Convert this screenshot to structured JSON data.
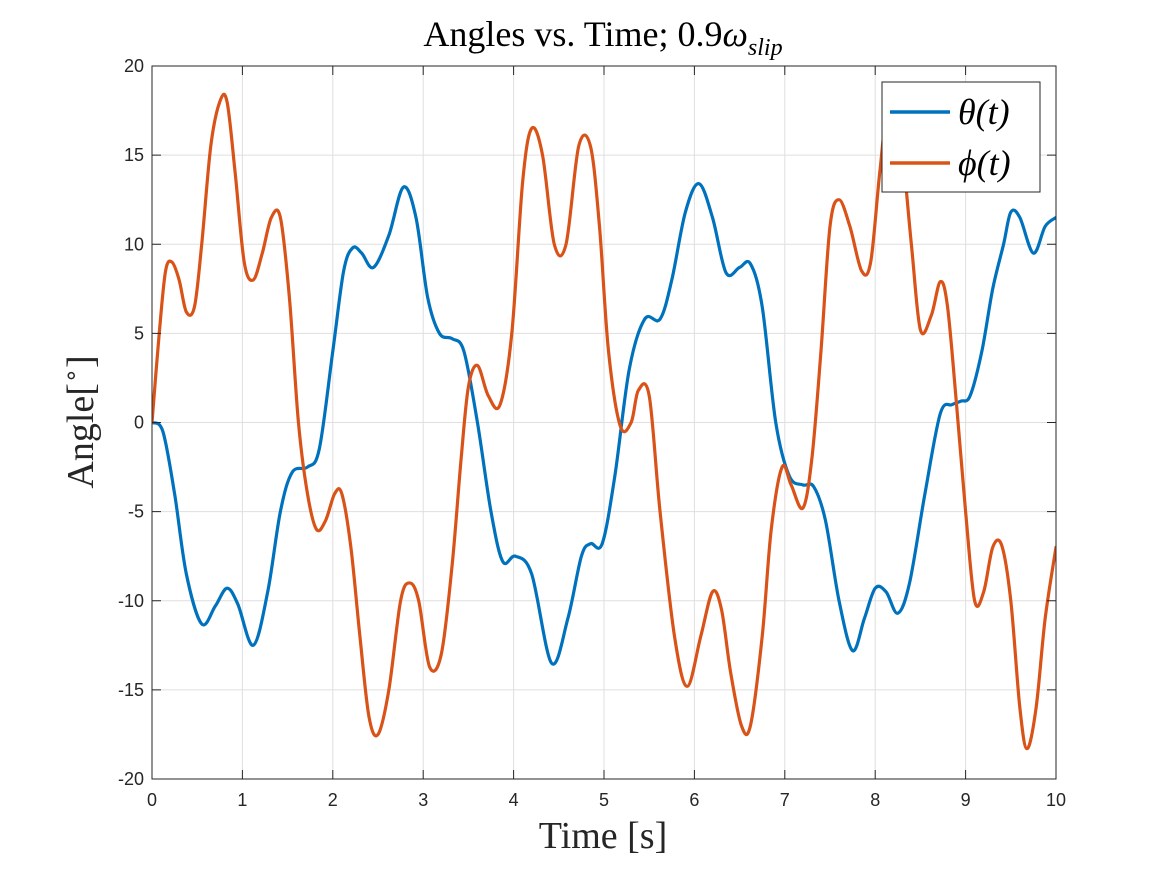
{
  "chart_data": {
    "type": "line",
    "title_main": "Angles vs. Time; 0.9",
    "title_omega": "ω",
    "title_sub": "slip",
    "xlabel": "Time [s]",
    "ylabel_main": "Angle[",
    "ylabel_deg": "∘",
    "ylabel_close": "]",
    "xlim": [
      0,
      10
    ],
    "ylim": [
      -20,
      20
    ],
    "xticks": [
      0,
      1,
      2,
      3,
      4,
      5,
      6,
      7,
      8,
      9,
      10
    ],
    "yticks": [
      -20,
      -15,
      -10,
      -5,
      0,
      5,
      10,
      15,
      20
    ],
    "xtick_labels": [
      "0",
      "1",
      "2",
      "3",
      "4",
      "5",
      "6",
      "7",
      "8",
      "9",
      "10"
    ],
    "ytick_labels": [
      "-20",
      "-15",
      "-10",
      "-5",
      "0",
      "5",
      "10",
      "15",
      "20"
    ],
    "grid": true,
    "legend_position": "top-right",
    "series": [
      {
        "name": "θ(t)",
        "color": "#0072bd",
        "x": [
          0,
          0.12,
          0.25,
          0.38,
          0.55,
          0.7,
          0.83,
          0.95,
          1.12,
          1.28,
          1.42,
          1.55,
          1.72,
          1.85,
          2.0,
          2.12,
          2.22,
          2.32,
          2.45,
          2.62,
          2.78,
          2.92,
          3.05,
          3.18,
          3.32,
          3.45,
          3.6,
          3.75,
          3.88,
          4.02,
          4.2,
          4.42,
          4.6,
          4.75,
          4.85,
          4.98,
          5.12,
          5.28,
          5.45,
          5.62,
          5.75,
          5.9,
          6.05,
          6.2,
          6.35,
          6.5,
          6.62,
          6.75,
          6.9,
          7.05,
          7.2,
          7.32,
          7.45,
          7.6,
          7.75,
          7.88,
          8.0,
          8.12,
          8.25,
          8.38,
          8.55,
          8.72,
          8.85,
          8.95,
          9.05,
          9.18,
          9.3,
          9.42,
          9.5,
          9.6,
          9.75,
          9.88,
          10.0
        ],
        "y": [
          0,
          -0.5,
          -4,
          -8.5,
          -11.3,
          -10.3,
          -9.3,
          -10.2,
          -12.5,
          -9.5,
          -5,
          -2.8,
          -2.5,
          -1.5,
          4,
          8.5,
          9.8,
          9.5,
          8.7,
          10.5,
          13.2,
          11.5,
          7,
          5,
          4.7,
          4,
          0,
          -5,
          -7.8,
          -7.5,
          -8.5,
          -13.5,
          -11,
          -7.5,
          -6.8,
          -6.8,
          -3,
          3,
          5.8,
          5.8,
          8,
          11.8,
          13.4,
          11.5,
          8.4,
          8.7,
          8.9,
          6.5,
          0,
          -3,
          -3.5,
          -3.6,
          -5.5,
          -10,
          -12.8,
          -11,
          -9.3,
          -9.5,
          -10.7,
          -9,
          -4,
          0.5,
          1,
          1.2,
          1.5,
          4,
          7.5,
          10,
          11.8,
          11.5,
          9.5,
          11,
          11.5
        ]
      },
      {
        "name": "ϕ(t)",
        "color": "#d95319",
        "x": [
          0,
          0.08,
          0.15,
          0.22,
          0.3,
          0.38,
          0.47,
          0.55,
          0.65,
          0.75,
          0.83,
          0.92,
          1.02,
          1.12,
          1.22,
          1.32,
          1.42,
          1.52,
          1.62,
          1.72,
          1.82,
          1.92,
          2.02,
          2.1,
          2.2,
          2.3,
          2.4,
          2.5,
          2.62,
          2.75,
          2.85,
          2.95,
          3.07,
          3.2,
          3.32,
          3.42,
          3.5,
          3.6,
          3.72,
          3.85,
          3.98,
          4.1,
          4.2,
          4.32,
          4.45,
          4.58,
          4.72,
          4.85,
          4.95,
          5.05,
          5.18,
          5.3,
          5.38,
          5.5,
          5.62,
          5.78,
          5.92,
          6.07,
          6.2,
          6.3,
          6.4,
          6.52,
          6.62,
          6.75,
          6.85,
          6.97,
          7.07,
          7.2,
          7.3,
          7.4,
          7.5,
          7.6,
          7.72,
          7.85,
          7.95,
          8.05,
          8.15,
          8.28,
          8.4,
          8.5,
          8.62,
          8.72,
          8.8,
          8.9,
          9.0,
          9.1,
          9.2,
          9.3,
          9.4,
          9.5,
          9.6,
          9.68,
          9.78,
          9.88,
          10.0
        ],
        "y": [
          0,
          5,
          8.5,
          9,
          8,
          6.2,
          6.5,
          10,
          15.5,
          18,
          18,
          14,
          9,
          8,
          9.5,
          11.5,
          11.5,
          7,
          0,
          -4,
          -6,
          -5.5,
          -4,
          -4,
          -7,
          -12,
          -16.5,
          -17.5,
          -15,
          -10,
          -9,
          -10,
          -13.7,
          -13,
          -8,
          -2,
          2,
          3.2,
          1.5,
          1,
          5,
          13.5,
          16.5,
          15,
          10,
          10,
          15.5,
          15.5,
          11,
          4,
          -0.2,
          0,
          1.8,
          1.5,
          -5,
          -12,
          -14.8,
          -12,
          -9.5,
          -10.5,
          -14,
          -17,
          -17,
          -12,
          -6,
          -2.5,
          -3.5,
          -4.8,
          -2,
          4,
          11,
          12.5,
          11,
          8.5,
          9,
          14,
          18,
          16,
          10,
          5.2,
          6,
          7.9,
          6.5,
          1,
          -5,
          -10,
          -9.5,
          -7,
          -6.9,
          -10,
          -16,
          -18.3,
          -16,
          -11,
          -7
        ]
      }
    ]
  }
}
